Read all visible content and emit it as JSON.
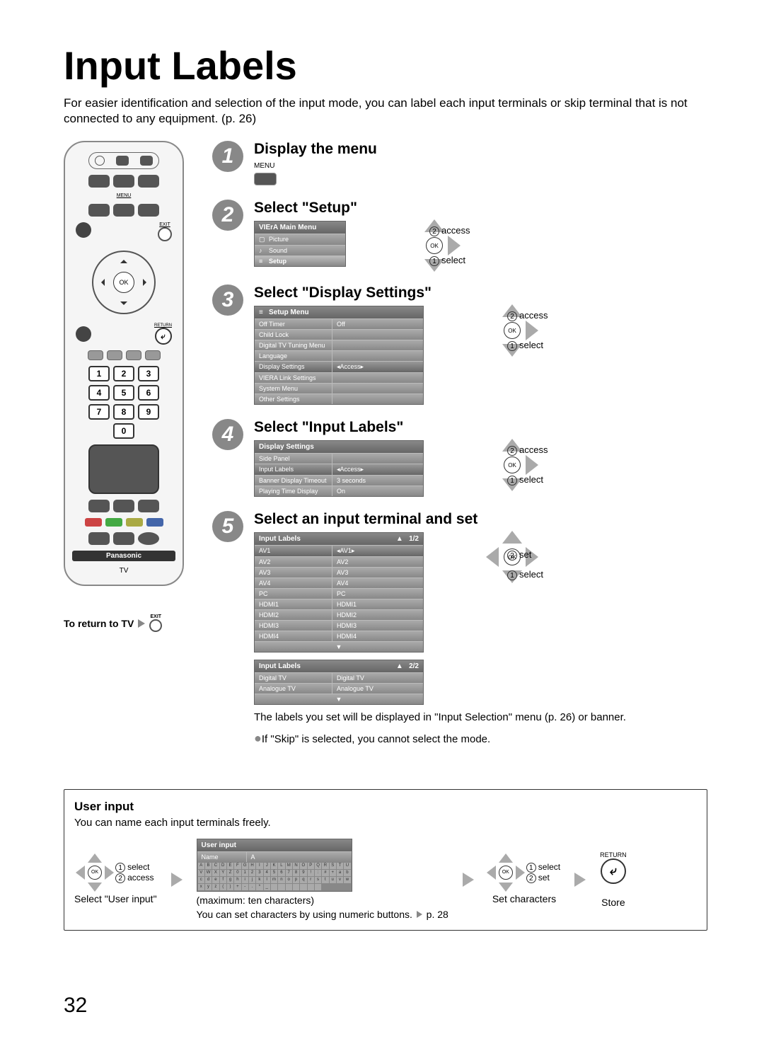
{
  "page_title": "Input Labels",
  "intro": "For easier identification and selection of the input mode, you can label each input terminals or skip terminal that is not connected to any equipment. (p. 26)",
  "remote": {
    "brand": "Panasonic",
    "tv": "TV",
    "menu_label": "MENU",
    "exit_label": "EXIT",
    "return_label": "RETURN",
    "ok": "OK",
    "numbers": [
      "1",
      "2",
      "3",
      "4",
      "5",
      "6",
      "7",
      "8",
      "9",
      "0"
    ],
    "return_icon": "⤶"
  },
  "return_to_tv": "To return to TV",
  "steps": {
    "s1": {
      "title": "Display the menu",
      "hint": "MENU"
    },
    "s2": {
      "title": "Select \"Setup\"",
      "menu_header": "VIErA Main Menu",
      "items": {
        "picture": "Picture",
        "sound": "Sound",
        "setup": "Setup"
      },
      "nav_top": "access",
      "nav_bot": "select",
      "nav_top_n": "2",
      "nav_bot_n": "1"
    },
    "s3": {
      "title": "Select \"Display Settings\"",
      "menu_header": "Setup Menu",
      "rows": [
        {
          "label": "Off Timer",
          "val": "Off"
        },
        {
          "label": "Child Lock",
          "val": ""
        },
        {
          "label": "Digital TV Tuning Menu",
          "val": ""
        },
        {
          "label": "Language",
          "val": ""
        },
        {
          "label": "Display Settings",
          "val": "Access",
          "sel": true
        },
        {
          "label": "VIERA Link Settings",
          "val": ""
        },
        {
          "label": "System Menu",
          "val": ""
        },
        {
          "label": "Other Settings",
          "val": ""
        }
      ],
      "nav_top": "access",
      "nav_bot": "select",
      "nav_top_n": "2",
      "nav_bot_n": "1"
    },
    "s4": {
      "title": "Select \"Input Labels\"",
      "menu_header": "Display Settings",
      "rows": [
        {
          "label": "Side Panel",
          "val": ""
        },
        {
          "label": "Input Labels",
          "val": "Access",
          "sel": true
        },
        {
          "label": "Banner Display Timeout",
          "val": "3 seconds"
        },
        {
          "label": "Playing Time Display",
          "val": "On"
        }
      ],
      "nav_top": "access",
      "nav_bot": "select",
      "nav_top_n": "2",
      "nav_bot_n": "1"
    },
    "s5": {
      "title": "Select an input terminal and set",
      "menu_header1": "Input Labels",
      "page1": "1/2",
      "rows1": [
        {
          "label": "AV1",
          "val": "AV1",
          "sel": true
        },
        {
          "label": "AV2",
          "val": "AV2"
        },
        {
          "label": "AV3",
          "val": "AV3"
        },
        {
          "label": "AV4",
          "val": "AV4"
        },
        {
          "label": "PC",
          "val": "PC"
        },
        {
          "label": "HDMI1",
          "val": "HDMI1"
        },
        {
          "label": "HDMI2",
          "val": "HDMI2"
        },
        {
          "label": "HDMI3",
          "val": "HDMI3"
        },
        {
          "label": "HDMI4",
          "val": "HDMI4"
        }
      ],
      "menu_header2": "Input Labels",
      "page2": "2/2",
      "rows2": [
        {
          "label": "Digital TV",
          "val": "Digital TV"
        },
        {
          "label": "Analogue TV",
          "val": "Analogue TV"
        }
      ],
      "nav_top": "set",
      "nav_bot": "select",
      "nav_top_n": "2",
      "nav_bot_n": "1",
      "note1": "The labels you set will be displayed in \"Input Selection\" menu (p. 26) or banner.",
      "note2": "If \"Skip\" is selected, you cannot select the mode."
    }
  },
  "user_input": {
    "title": "User input",
    "sub": "You can name each input terminals freely.",
    "step1_label": "Select \"User input\"",
    "step1_top": "select",
    "step1_top_n": "1",
    "step1_bot": "access",
    "step1_bot_n": "2",
    "screen_header": "User input",
    "name_label": "Name",
    "name_val": "A",
    "chars_row1": [
      "A",
      "B",
      "C",
      "D",
      "E",
      "F",
      "G",
      "H",
      "I",
      "J",
      "K",
      "L",
      "M",
      "N",
      "O",
      "P",
      "Q",
      "R",
      "S",
      "T"
    ],
    "chars_row2": [
      "U",
      "V",
      "W",
      "X",
      "Y",
      "Z",
      "0",
      "1",
      "2",
      "3",
      "4",
      "5",
      "6",
      "7",
      "8",
      "9",
      "!",
      ":",
      "#",
      "+"
    ],
    "chars_row3": [
      "a",
      "b",
      "c",
      "d",
      "e",
      "f",
      "g",
      "h",
      "i",
      "j",
      "k",
      "l",
      "m",
      "n",
      "o",
      "p",
      "q",
      "r",
      "s",
      "t"
    ],
    "chars_row4": [
      "u",
      "v",
      "w",
      "x",
      "y",
      "z",
      "(",
      ")",
      "+",
      "-",
      ".",
      "*",
      "_",
      "",
      "",
      "",
      "",
      "",
      "",
      ""
    ],
    "caption1": "(maximum: ten characters)",
    "caption2": "You can set characters by using numeric buttons.",
    "caption3": "p. 28",
    "step3_label": "Set characters",
    "step3_top": "select",
    "step3_top_n": "1",
    "step3_bot": "set",
    "step3_bot_n": "2",
    "store_label": "Store",
    "return_label": "RETURN",
    "return_icon": "⤶"
  },
  "page_number": "32",
  "ok_label": "OK"
}
